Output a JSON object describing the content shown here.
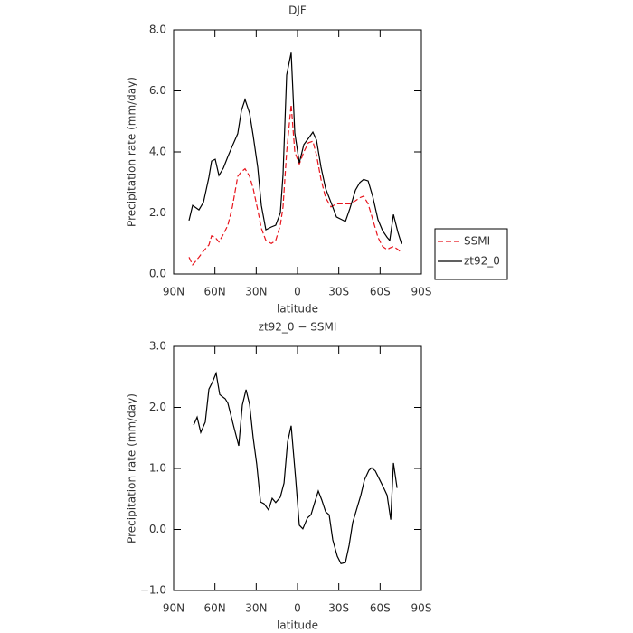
{
  "chart_data": [
    {
      "type": "line",
      "title": "DJF",
      "x_label": "latitude",
      "y_label": "Precipitation rate (mm/day)",
      "xlim": [
        90,
        -90
      ],
      "ylim": [
        0,
        8
      ],
      "xticks": [
        {
          "value": 90,
          "label": "90N"
        },
        {
          "value": 60,
          "label": "60N"
        },
        {
          "value": 30,
          "label": "30N"
        },
        0,
        {
          "value": -30,
          "label": "30S"
        },
        {
          "value": -60,
          "label": "60S"
        },
        {
          "value": -90,
          "label": "90S"
        }
      ],
      "yticks": [
        {
          "value": 0,
          "label": "0.0"
        },
        {
          "value": 2,
          "label": "2.0"
        },
        {
          "value": 4,
          "label": "4.0"
        },
        {
          "value": 6,
          "label": "6.0"
        },
        {
          "value": 8,
          "label": "8.0"
        }
      ],
      "legend": "right",
      "x": [
        78.8,
        76.2,
        71.6,
        68.3,
        64.4,
        62.4,
        59.8,
        57.1,
        53.9,
        50.6,
        47.3,
        43.4,
        40.7,
        38.1,
        34.8,
        32.2,
        28.9,
        26.3,
        23.0,
        19.0,
        15.8,
        12.5,
        10.5,
        7.9,
        4.6,
        2.0,
        -1.3,
        -4.6,
        -7.9,
        -11.2,
        -13.8,
        -17.1,
        -20.4,
        -24.3,
        -28.3,
        -32.2,
        -34.8,
        -38.1,
        -42.1,
        -45.3,
        -48.0,
        -51.3,
        -54.6,
        -58.5,
        -61.8,
        -65.1,
        -67.0,
        -69.7,
        -73.0,
        -75.6
      ],
      "series": [
        {
          "name": "SSMI",
          "color": "#e8141c",
          "style": "dashed",
          "values": [
            0.55,
            0.3,
            0.55,
            0.75,
            0.95,
            1.25,
            1.2,
            1.05,
            1.3,
            1.6,
            2.2,
            3.2,
            3.35,
            3.45,
            3.2,
            2.8,
            2.1,
            1.5,
            1.1,
            1.0,
            1.1,
            1.6,
            2.2,
            4.0,
            5.55,
            4.0,
            3.6,
            4.0,
            4.3,
            4.35,
            3.9,
            3.1,
            2.5,
            2.2,
            2.3,
            2.3,
            2.3,
            2.3,
            2.4,
            2.5,
            2.55,
            2.3,
            1.8,
            1.2,
            0.9,
            0.8,
            0.85,
            0.9,
            0.8,
            0.7
          ]
        },
        {
          "name": "zt92_0",
          "color": "#000000",
          "style": "solid",
          "values": [
            1.75,
            2.25,
            2.1,
            2.35,
            3.17,
            3.7,
            3.76,
            3.23,
            3.47,
            3.85,
            4.2,
            4.6,
            5.36,
            5.72,
            5.27,
            4.53,
            3.5,
            2.25,
            1.45,
            1.54,
            1.6,
            2.0,
            3.26,
            6.52,
            7.25,
            4.62,
            3.64,
            4.24,
            4.44,
            4.65,
            4.39,
            3.5,
            2.8,
            2.35,
            1.87,
            1.78,
            1.72,
            2.15,
            2.75,
            3.0,
            3.1,
            3.05,
            2.55,
            1.78,
            1.42,
            1.2,
            1.1,
            1.95,
            1.36,
            0.98
          ]
        }
      ]
    },
    {
      "type": "line",
      "title": "zt92_0 − SSMI",
      "x_label": "latitude",
      "y_label": "Precipitation rate (mm/day)",
      "xlim": [
        90,
        -90
      ],
      "ylim": [
        -1,
        3
      ],
      "xticks": [
        {
          "value": 90,
          "label": "90N"
        },
        {
          "value": 60,
          "label": "60N"
        },
        {
          "value": 30,
          "label": "30N"
        },
        0,
        {
          "value": -30,
          "label": "30S"
        },
        {
          "value": -60,
          "label": "60S"
        },
        {
          "value": -90,
          "label": "90S"
        }
      ],
      "yticks": [
        {
          "value": -1,
          "label": "−1.0"
        },
        {
          "value": 0,
          "label": "0.0"
        },
        {
          "value": 1,
          "label": "1.0"
        },
        {
          "value": 2,
          "label": "2.0"
        },
        {
          "value": 3,
          "label": "3.0"
        }
      ],
      "x": [
        75.5,
        72.9,
        70.3,
        67.0,
        64.4,
        61.7,
        59.1,
        56.5,
        52.5,
        50.6,
        46.6,
        42.7,
        40.1,
        37.4,
        34.8,
        32.2,
        29.6,
        26.9,
        24.3,
        21.0,
        18.4,
        15.8,
        12.5,
        9.8,
        7.2,
        4.6,
        1.3,
        -1.3,
        -3.9,
        -7.2,
        -9.8,
        -12.5,
        -15.1,
        -17.7,
        -20.4,
        -23.0,
        -25.6,
        -28.9,
        -31.6,
        -34.8,
        -37.5,
        -40.1,
        -44.0,
        -46.0,
        -48.6,
        -51.9,
        -53.9,
        -56.5,
        -59.8,
        -62.4,
        -65.1,
        -67.7,
        -69.7,
        -72.3
      ],
      "series": [
        {
          "color": "#000000",
          "style": "solid",
          "values": [
            1.71,
            1.84,
            1.59,
            1.76,
            2.3,
            2.42,
            2.56,
            2.21,
            2.14,
            2.07,
            1.71,
            1.37,
            2.04,
            2.29,
            2.05,
            1.5,
            1.07,
            0.45,
            0.42,
            0.32,
            0.51,
            0.44,
            0.53,
            0.76,
            1.43,
            1.7,
            0.82,
            0.07,
            0.01,
            0.19,
            0.24,
            0.44,
            0.63,
            0.48,
            0.29,
            0.24,
            -0.17,
            -0.44,
            -0.56,
            -0.54,
            -0.26,
            0.11,
            0.41,
            0.56,
            0.81,
            0.97,
            1.01,
            0.96,
            0.81,
            0.69,
            0.56,
            0.16,
            1.09,
            0.68
          ]
        }
      ]
    }
  ]
}
